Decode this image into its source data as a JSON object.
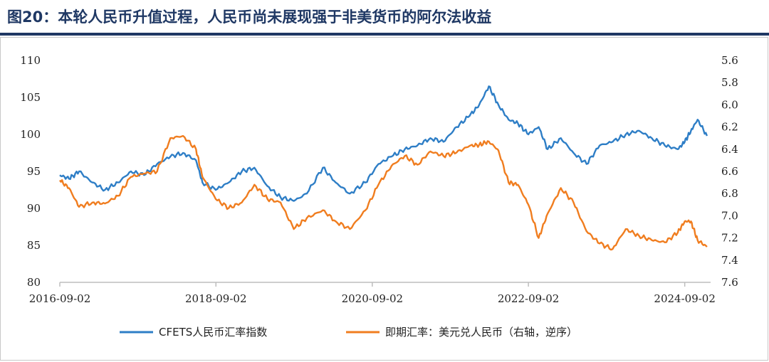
{
  "title": "图20：本轮人民币升值过程，人民币尚未展现强于非美货币的阿尔法收益",
  "chart_data": {
    "type": "line",
    "x_ticks": [
      "2016-09-02",
      "2018-09-02",
      "2020-09-02",
      "2022-09-02",
      "2024-09-02"
    ],
    "x_range": [
      "2016-09-02",
      "2025-01-01"
    ],
    "left_axis": {
      "ticks": [
        "110",
        "105",
        "100",
        "95",
        "90",
        "85",
        "80"
      ],
      "range": [
        80,
        110
      ]
    },
    "right_axis": {
      "ticks": [
        "5.6",
        "5.8",
        "6.0",
        "6.2",
        "6.4",
        "6.6",
        "6.8",
        "7.0",
        "7.2",
        "7.4",
        "7.6"
      ],
      "range": [
        5.6,
        7.6
      ],
      "inverted": true
    },
    "series": [
      {
        "name": "CFETS人民币汇率指数",
        "axis": "left",
        "color": "#2e7ec6",
        "x": [
          "2016-09-02",
          "2016-10-15",
          "2016-12-01",
          "2017-02-01",
          "2017-04-01",
          "2017-06-01",
          "2017-08-01",
          "2017-10-01",
          "2017-12-01",
          "2018-02-01",
          "2018-04-01",
          "2018-06-01",
          "2018-07-01",
          "2018-09-01",
          "2018-11-01",
          "2019-01-01",
          "2019-03-01",
          "2019-05-01",
          "2019-07-01",
          "2019-09-01",
          "2019-11-01",
          "2020-01-15",
          "2020-03-15",
          "2020-05-20",
          "2020-08-01",
          "2020-10-01",
          "2020-12-01",
          "2021-02-01",
          "2021-04-01",
          "2021-06-01",
          "2021-08-01",
          "2021-10-01",
          "2021-12-01",
          "2022-01-15",
          "2022-03-01",
          "2022-04-15",
          "2022-06-01",
          "2022-07-15",
          "2022-09-02",
          "2022-10-20",
          "2022-12-01",
          "2023-02-01",
          "2023-04-01",
          "2023-06-01",
          "2023-08-01",
          "2023-10-01",
          "2023-12-01",
          "2024-02-01",
          "2024-04-01",
          "2024-06-01",
          "2024-08-01",
          "2024-09-02",
          "2024-10-01",
          "2024-11-01",
          "2024-12-15"
        ],
        "values": [
          94.5,
          94.0,
          95.0,
          93.5,
          92.5,
          93.5,
          95.0,
          94.5,
          96.0,
          97.0,
          97.5,
          96.5,
          93.5,
          92.5,
          93.5,
          95.0,
          95.5,
          93.0,
          91.5,
          91.0,
          92.0,
          95.5,
          93.5,
          92.0,
          93.5,
          96.0,
          97.0,
          98.0,
          98.5,
          99.5,
          99.0,
          101.0,
          102.5,
          104.0,
          106.5,
          104.0,
          102.0,
          101.5,
          100.0,
          101.0,
          98.0,
          99.5,
          97.5,
          96.0,
          98.5,
          99.0,
          100.0,
          100.5,
          99.5,
          98.5,
          98.0,
          99.0,
          100.5,
          102.0,
          99.8
        ]
      },
      {
        "name": "即期汇率：美元兑人民币（右轴，逆序）",
        "axis": "right",
        "color": "#f07d1f",
        "x": [
          "2016-09-02",
          "2016-10-15",
          "2016-12-01",
          "2017-02-01",
          "2017-04-01",
          "2017-06-01",
          "2017-08-01",
          "2017-10-01",
          "2017-12-01",
          "2018-02-01",
          "2018-04-01",
          "2018-06-01",
          "2018-07-01",
          "2018-09-01",
          "2018-11-01",
          "2019-01-01",
          "2019-03-01",
          "2019-05-01",
          "2019-07-01",
          "2019-09-01",
          "2019-11-01",
          "2020-01-15",
          "2020-03-15",
          "2020-05-20",
          "2020-08-01",
          "2020-10-01",
          "2020-12-01",
          "2021-02-01",
          "2021-04-01",
          "2021-06-01",
          "2021-08-01",
          "2021-10-01",
          "2021-12-01",
          "2022-01-15",
          "2022-03-01",
          "2022-04-15",
          "2022-06-01",
          "2022-07-15",
          "2022-09-02",
          "2022-10-20",
          "2022-12-01",
          "2023-02-01",
          "2023-04-01",
          "2023-06-01",
          "2023-08-01",
          "2023-10-01",
          "2023-12-01",
          "2024-02-01",
          "2024-04-01",
          "2024-06-01",
          "2024-08-01",
          "2024-09-02",
          "2024-10-01",
          "2024-11-01",
          "2024-12-15"
        ],
        "values": [
          6.68,
          6.75,
          6.92,
          6.88,
          6.89,
          6.82,
          6.65,
          6.62,
          6.6,
          6.3,
          6.28,
          6.4,
          6.65,
          6.85,
          6.93,
          6.88,
          6.72,
          6.85,
          6.88,
          7.12,
          7.02,
          6.95,
          7.05,
          7.12,
          6.95,
          6.72,
          6.55,
          6.46,
          6.54,
          6.42,
          6.46,
          6.43,
          6.37,
          6.36,
          6.33,
          6.41,
          6.7,
          6.72,
          6.9,
          7.2,
          6.98,
          6.75,
          6.88,
          7.14,
          7.25,
          7.3,
          7.12,
          7.18,
          7.22,
          7.24,
          7.15,
          7.05,
          7.05,
          7.22,
          7.28
        ]
      }
    ],
    "legend": {
      "placement": "bottom"
    }
  }
}
